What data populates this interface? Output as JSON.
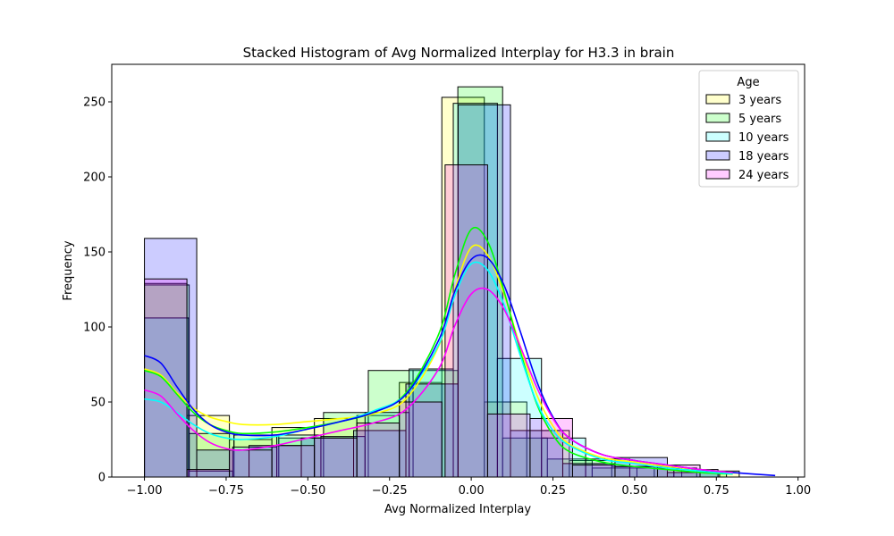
{
  "chart_data": {
    "type": "histogram",
    "title": "Stacked Histogram of Avg Normalized  Interplay for H3.3 in brain",
    "xlabel": "Avg Normalized Interplay",
    "ylabel": "Frequency",
    "xlim": [
      -1.1,
      1.02
    ],
    "ylim": [
      0,
      275
    ],
    "xticks": [
      -1.0,
      -0.75,
      -0.5,
      -0.25,
      0.0,
      0.25,
      0.5,
      0.75,
      1.0
    ],
    "xtick_labels": [
      "−1.00",
      "−0.75",
      "−0.50",
      "−0.25",
      "0.00",
      "0.25",
      "0.50",
      "0.75",
      "1.00"
    ],
    "yticks": [
      0,
      50,
      100,
      150,
      200,
      250
    ],
    "ytick_labels": [
      "0",
      "50",
      "100",
      "150",
      "200",
      "250"
    ],
    "legend_title": "Age",
    "legend_position": "top-right",
    "series": [
      {
        "name": "3 years",
        "color": "#ffff00",
        "bins": [
          {
            "x0": -1.0,
            "x1": -0.87,
            "y": 129
          },
          {
            "x0": -0.87,
            "x1": -0.74,
            "y": 41
          },
          {
            "x0": -0.74,
            "x1": -0.61,
            "y": 25
          },
          {
            "x0": -0.61,
            "x1": -0.48,
            "y": 33
          },
          {
            "x0": -0.48,
            "x1": -0.35,
            "y": 39
          },
          {
            "x0": -0.35,
            "x1": -0.22,
            "y": 41
          },
          {
            "x0": -0.22,
            "x1": -0.09,
            "y": 63
          },
          {
            "x0": -0.09,
            "x1": 0.04,
            "y": 253
          },
          {
            "x0": 0.04,
            "x1": 0.17,
            "y": 50
          },
          {
            "x0": 0.17,
            "x1": 0.3,
            "y": 31
          },
          {
            "x0": 0.3,
            "x1": 0.43,
            "y": 11
          },
          {
            "x0": 0.43,
            "x1": 0.56,
            "y": 7
          },
          {
            "x0": 0.56,
            "x1": 0.69,
            "y": 6
          },
          {
            "x0": 0.69,
            "x1": 0.82,
            "y": 4
          }
        ],
        "kde": [
          {
            "x": -1.0,
            "y": 72
          },
          {
            "x": -0.95,
            "y": 68
          },
          {
            "x": -0.9,
            "y": 56
          },
          {
            "x": -0.85,
            "y": 46
          },
          {
            "x": -0.8,
            "y": 40
          },
          {
            "x": -0.75,
            "y": 37
          },
          {
            "x": -0.7,
            "y": 35
          },
          {
            "x": -0.6,
            "y": 35
          },
          {
            "x": -0.5,
            "y": 37
          },
          {
            "x": -0.4,
            "y": 39
          },
          {
            "x": -0.3,
            "y": 42
          },
          {
            "x": -0.2,
            "y": 52
          },
          {
            "x": -0.1,
            "y": 87
          },
          {
            "x": -0.05,
            "y": 125
          },
          {
            "x": 0.0,
            "y": 153
          },
          {
            "x": 0.05,
            "y": 148
          },
          {
            "x": 0.1,
            "y": 122
          },
          {
            "x": 0.15,
            "y": 87
          },
          {
            "x": 0.2,
            "y": 55
          },
          {
            "x": 0.25,
            "y": 34
          },
          {
            "x": 0.3,
            "y": 22
          },
          {
            "x": 0.4,
            "y": 13
          },
          {
            "x": 0.5,
            "y": 10
          },
          {
            "x": 0.6,
            "y": 7
          },
          {
            "x": 0.7,
            "y": 5
          },
          {
            "x": 0.8,
            "y": 3
          }
        ]
      },
      {
        "name": "5 years",
        "color": "#00ff00",
        "bins": [
          {
            "x0": -1.0,
            "x1": -0.863,
            "y": 128
          },
          {
            "x0": -0.863,
            "x1": -0.726,
            "y": 29
          },
          {
            "x0": -0.726,
            "x1": -0.589,
            "y": 28
          },
          {
            "x0": -0.589,
            "x1": -0.452,
            "y": 26
          },
          {
            "x0": -0.452,
            "x1": -0.315,
            "y": 43
          },
          {
            "x0": -0.315,
            "x1": -0.178,
            "y": 71
          },
          {
            "x0": -0.178,
            "x1": -0.041,
            "y": 71
          },
          {
            "x0": -0.041,
            "x1": 0.096,
            "y": 260
          },
          {
            "x0": 0.096,
            "x1": 0.233,
            "y": 26
          },
          {
            "x0": 0.233,
            "x1": 0.37,
            "y": 12
          },
          {
            "x0": 0.37,
            "x1": 0.507,
            "y": 6
          },
          {
            "x0": 0.507,
            "x1": 0.644,
            "y": 6
          },
          {
            "x0": 0.644,
            "x1": 0.781,
            "y": 3
          }
        ],
        "kde": [
          {
            "x": -1.0,
            "y": 71
          },
          {
            "x": -0.95,
            "y": 67
          },
          {
            "x": -0.9,
            "y": 55
          },
          {
            "x": -0.85,
            "y": 43
          },
          {
            "x": -0.8,
            "y": 35
          },
          {
            "x": -0.75,
            "y": 31
          },
          {
            "x": -0.7,
            "y": 29
          },
          {
            "x": -0.6,
            "y": 30
          },
          {
            "x": -0.5,
            "y": 33
          },
          {
            "x": -0.4,
            "y": 37
          },
          {
            "x": -0.3,
            "y": 43
          },
          {
            "x": -0.2,
            "y": 56
          },
          {
            "x": -0.1,
            "y": 95
          },
          {
            "x": -0.05,
            "y": 135
          },
          {
            "x": 0.0,
            "y": 165
          },
          {
            "x": 0.05,
            "y": 157
          },
          {
            "x": 0.1,
            "y": 124
          },
          {
            "x": 0.15,
            "y": 84
          },
          {
            "x": 0.2,
            "y": 49
          },
          {
            "x": 0.25,
            "y": 28
          },
          {
            "x": 0.3,
            "y": 17
          },
          {
            "x": 0.4,
            "y": 10
          },
          {
            "x": 0.5,
            "y": 7
          },
          {
            "x": 0.6,
            "y": 5
          },
          {
            "x": 0.7,
            "y": 3
          },
          {
            "x": 0.8,
            "y": 2
          }
        ]
      },
      {
        "name": "10 years",
        "color": "#00ffff",
        "bins": [
          {
            "x0": -1.0,
            "x1": -0.865,
            "y": 106
          },
          {
            "x0": -0.865,
            "x1": -0.73,
            "y": 4
          },
          {
            "x0": -0.73,
            "x1": -0.595,
            "y": 20
          },
          {
            "x0": -0.595,
            "x1": -0.46,
            "y": 28
          },
          {
            "x0": -0.46,
            "x1": -0.325,
            "y": 27
          },
          {
            "x0": -0.325,
            "x1": -0.19,
            "y": 43
          },
          {
            "x0": -0.19,
            "x1": -0.055,
            "y": 72
          },
          {
            "x0": -0.055,
            "x1": 0.08,
            "y": 249
          },
          {
            "x0": 0.08,
            "x1": 0.215,
            "y": 79
          },
          {
            "x0": 0.215,
            "x1": 0.35,
            "y": 26
          },
          {
            "x0": 0.35,
            "x1": 0.485,
            "y": 12
          },
          {
            "x0": 0.485,
            "x1": 0.62,
            "y": 7
          },
          {
            "x0": 0.62,
            "x1": 0.755,
            "y": 5
          }
        ],
        "kde": [
          {
            "x": -1.0,
            "y": 52
          },
          {
            "x": -0.95,
            "y": 50
          },
          {
            "x": -0.9,
            "y": 43
          },
          {
            "x": -0.85,
            "y": 35
          },
          {
            "x": -0.8,
            "y": 29
          },
          {
            "x": -0.75,
            "y": 26
          },
          {
            "x": -0.7,
            "y": 25
          },
          {
            "x": -0.6,
            "y": 27
          },
          {
            "x": -0.5,
            "y": 32
          },
          {
            "x": -0.4,
            "y": 37
          },
          {
            "x": -0.3,
            "y": 44
          },
          {
            "x": -0.2,
            "y": 55
          },
          {
            "x": -0.1,
            "y": 88
          },
          {
            "x": -0.05,
            "y": 121
          },
          {
            "x": 0.0,
            "y": 142
          },
          {
            "x": 0.05,
            "y": 138
          },
          {
            "x": 0.1,
            "y": 115
          },
          {
            "x": 0.15,
            "y": 81
          },
          {
            "x": 0.2,
            "y": 50
          },
          {
            "x": 0.25,
            "y": 31
          },
          {
            "x": 0.3,
            "y": 21
          },
          {
            "x": 0.4,
            "y": 12
          },
          {
            "x": 0.5,
            "y": 9
          },
          {
            "x": 0.6,
            "y": 6
          },
          {
            "x": 0.7,
            "y": 4
          },
          {
            "x": 0.8,
            "y": 2
          }
        ]
      },
      {
        "name": "18 years",
        "color": "#0000ff",
        "bins": [
          {
            "x0": -1.0,
            "x1": -0.84,
            "y": 159
          },
          {
            "x0": -0.84,
            "x1": -0.68,
            "y": 18
          },
          {
            "x0": -0.68,
            "x1": -0.52,
            "y": 21
          },
          {
            "x0": -0.52,
            "x1": -0.36,
            "y": 26
          },
          {
            "x0": -0.36,
            "x1": -0.2,
            "y": 31
          },
          {
            "x0": -0.2,
            "x1": -0.04,
            "y": 62
          },
          {
            "x0": -0.04,
            "x1": 0.12,
            "y": 248
          },
          {
            "x0": 0.12,
            "x1": 0.28,
            "y": 31
          },
          {
            "x0": 0.28,
            "x1": 0.44,
            "y": 9
          },
          {
            "x0": 0.44,
            "x1": 0.6,
            "y": 13
          },
          {
            "x0": 0.6,
            "x1": 0.76,
            "y": 3
          }
        ],
        "kde": [
          {
            "x": -1.0,
            "y": 81
          },
          {
            "x": -0.95,
            "y": 76
          },
          {
            "x": -0.9,
            "y": 60
          },
          {
            "x": -0.85,
            "y": 45
          },
          {
            "x": -0.8,
            "y": 35
          },
          {
            "x": -0.75,
            "y": 30
          },
          {
            "x": -0.7,
            "y": 28
          },
          {
            "x": -0.6,
            "y": 28
          },
          {
            "x": -0.5,
            "y": 32
          },
          {
            "x": -0.4,
            "y": 37
          },
          {
            "x": -0.3,
            "y": 43
          },
          {
            "x": -0.2,
            "y": 55
          },
          {
            "x": -0.1,
            "y": 91
          },
          {
            "x": -0.05,
            "y": 124
          },
          {
            "x": 0.0,
            "y": 145
          },
          {
            "x": 0.05,
            "y": 146
          },
          {
            "x": 0.1,
            "y": 128
          },
          {
            "x": 0.15,
            "y": 97
          },
          {
            "x": 0.2,
            "y": 64
          },
          {
            "x": 0.25,
            "y": 40
          },
          {
            "x": 0.3,
            "y": 26
          },
          {
            "x": 0.4,
            "y": 15
          },
          {
            "x": 0.5,
            "y": 11
          },
          {
            "x": 0.6,
            "y": 8
          },
          {
            "x": 0.7,
            "y": 5
          },
          {
            "x": 0.8,
            "y": 3
          },
          {
            "x": 0.93,
            "y": 1
          }
        ]
      },
      {
        "name": "24 years",
        "color": "#ff00ff",
        "bins": [
          {
            "x0": -1.0,
            "x1": -0.87,
            "y": 132
          },
          {
            "x0": -0.87,
            "x1": -0.74,
            "y": 5
          },
          {
            "x0": -0.74,
            "x1": -0.61,
            "y": 18
          },
          {
            "x0": -0.61,
            "x1": -0.48,
            "y": 21
          },
          {
            "x0": -0.48,
            "x1": -0.35,
            "y": 26
          },
          {
            "x0": -0.35,
            "x1": -0.22,
            "y": 36
          },
          {
            "x0": -0.22,
            "x1": -0.09,
            "y": 50
          },
          {
            "x0": -0.08,
            "x1": 0.05,
            "y": 208
          },
          {
            "x0": 0.05,
            "x1": 0.18,
            "y": 42
          },
          {
            "x0": 0.18,
            "x1": 0.31,
            "y": 39
          },
          {
            "x0": 0.31,
            "x1": 0.44,
            "y": 8
          },
          {
            "x0": 0.44,
            "x1": 0.57,
            "y": 7
          },
          {
            "x0": 0.57,
            "x1": 0.7,
            "y": 8
          }
        ],
        "kde": [
          {
            "x": -1.0,
            "y": 58
          },
          {
            "x": -0.95,
            "y": 54
          },
          {
            "x": -0.9,
            "y": 42
          },
          {
            "x": -0.85,
            "y": 31
          },
          {
            "x": -0.8,
            "y": 23
          },
          {
            "x": -0.75,
            "y": 19
          },
          {
            "x": -0.7,
            "y": 18
          },
          {
            "x": -0.6,
            "y": 21
          },
          {
            "x": -0.5,
            "y": 26
          },
          {
            "x": -0.4,
            "y": 31
          },
          {
            "x": -0.3,
            "y": 36
          },
          {
            "x": -0.2,
            "y": 45
          },
          {
            "x": -0.1,
            "y": 72
          },
          {
            "x": -0.05,
            "y": 101
          },
          {
            "x": 0.0,
            "y": 122
          },
          {
            "x": 0.05,
            "y": 125
          },
          {
            "x": 0.1,
            "y": 112
          },
          {
            "x": 0.15,
            "y": 87
          },
          {
            "x": 0.2,
            "y": 60
          },
          {
            "x": 0.25,
            "y": 39
          },
          {
            "x": 0.3,
            "y": 26
          },
          {
            "x": 0.4,
            "y": 15
          },
          {
            "x": 0.5,
            "y": 11
          },
          {
            "x": 0.6,
            "y": 8
          },
          {
            "x": 0.7,
            "y": 5
          },
          {
            "x": 0.8,
            "y": 3
          }
        ]
      }
    ]
  }
}
